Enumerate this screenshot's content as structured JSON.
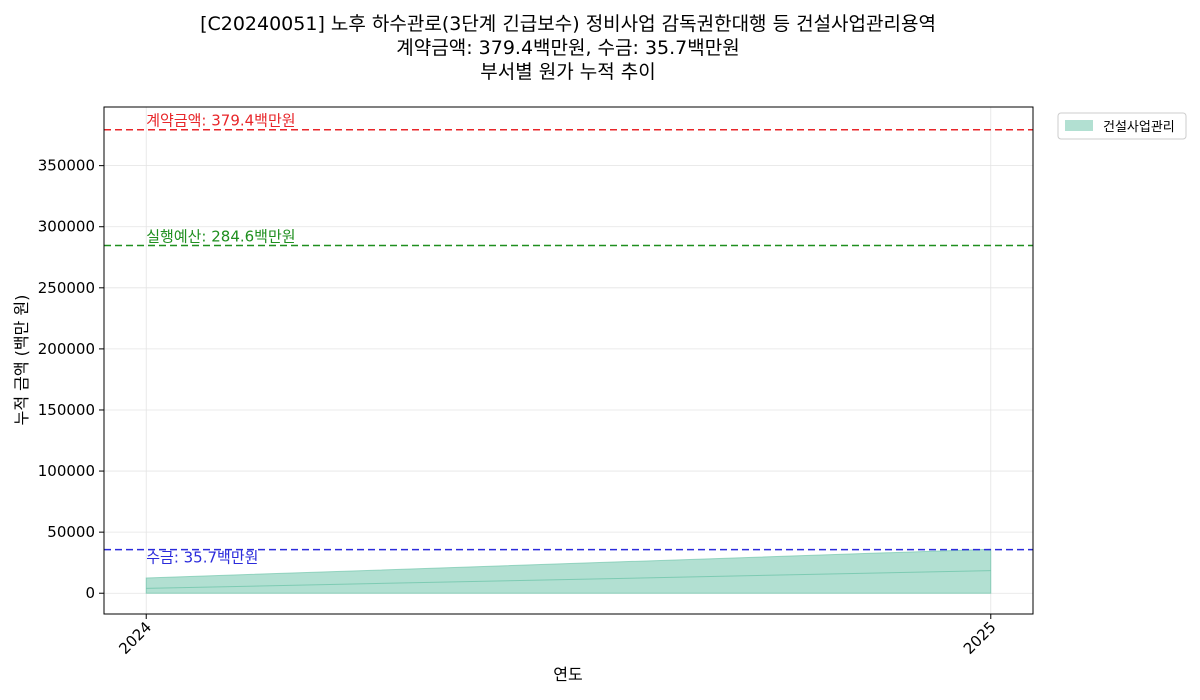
{
  "chart_data": {
    "type": "area",
    "title": "[C20240051] 노후 하수관로(3단계 긴급보수) 정비사업 감독권한대행 등 건설사업관리용역",
    "subtitle": "계약금액: 379.4백만원, 수금: 35.7백만원",
    "subtitle2": "부서별 원가 누적 추이",
    "xlabel": "연도",
    "ylabel": "누적 금액 (백만 원)",
    "x": [
      "2024",
      "2025"
    ],
    "xlim": [
      2023.95,
      2025.05
    ],
    "ylim": [
      -17000,
      398000
    ],
    "yticks": [
      0,
      50000,
      100000,
      150000,
      200000,
      250000,
      300000,
      350000
    ],
    "grid": true,
    "legend_position": "outside-top-right",
    "series": [
      {
        "name": "건설사업관리",
        "color": "#66c2a5",
        "lower": [
          0,
          0
        ],
        "upper": [
          12500,
          36000
        ],
        "mid": [
          4000,
          18500
        ]
      }
    ],
    "reference_lines": [
      {
        "label": "계약금액: 379.4백만원",
        "value": 379400,
        "color": "#e8262a"
      },
      {
        "label": "실행예산: 284.6백만원",
        "value": 284600,
        "color": "#1f8f1f"
      },
      {
        "label": "수금: 35.7백만원",
        "value": 35700,
        "color": "#2b2bdb"
      }
    ]
  }
}
